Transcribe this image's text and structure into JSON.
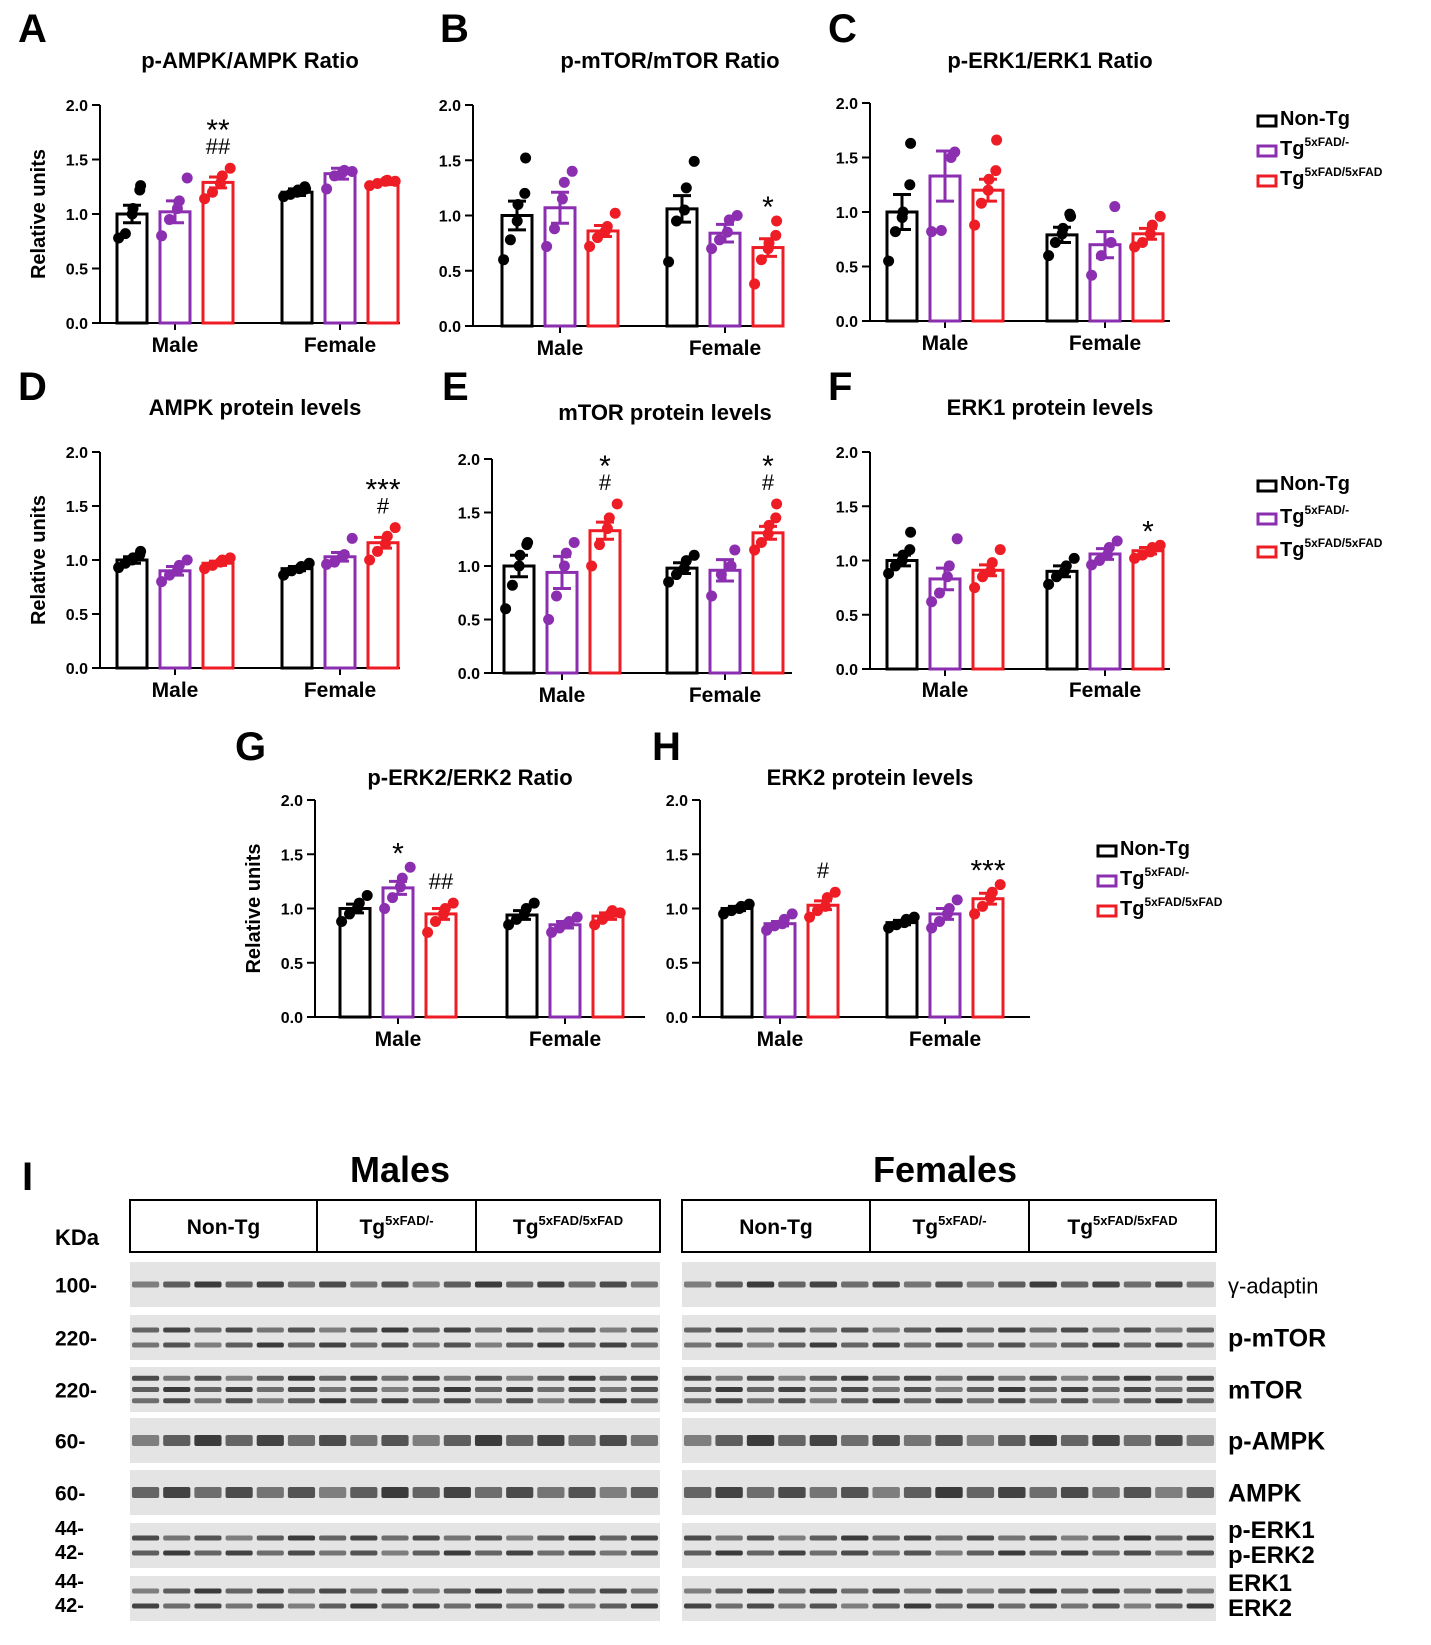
{
  "colors": {
    "non_tg": "#000000",
    "tg_het": "#8B2FB0",
    "tg_hom": "#EE1C25",
    "blot_bg": "#e4e4e4",
    "band": "#2a2a2a"
  },
  "legend": {
    "non_tg": "Non-Tg",
    "tg_het_base": "Tg",
    "tg_het_sup": "5xFAD/-",
    "tg_hom_base": "Tg",
    "tg_hom_sup": "5xFAD/5xFAD"
  },
  "chart_data": [
    {
      "panel": "A",
      "type": "bar",
      "title": "p-AMPK/AMPK Ratio",
      "ylabel": "Relative units",
      "ylim": [
        0,
        2.0
      ],
      "yticks": [
        "0.0",
        "0.5",
        "1.0",
        "1.5",
        "2.0"
      ],
      "categories": [
        "Male",
        "Female"
      ],
      "series": [
        {
          "name": "Non-Tg",
          "values": [
            1.0,
            1.2
          ],
          "sem": [
            0.08,
            0.03
          ],
          "points": [
            [
              0.78,
              0.82,
              1.0,
              1.05,
              1.22,
              1.26
            ],
            [
              1.16,
              1.18,
              1.2,
              1.22,
              1.25,
              1.23
            ]
          ]
        },
        {
          "name": "Tg5xFAD/-",
          "values": [
            1.02,
            1.37
          ],
          "sem": [
            0.1,
            0.05
          ],
          "points": [
            [
              0.8,
              0.95,
              1.05,
              1.12,
              1.33
            ],
            [
              1.23,
              1.35,
              1.38,
              1.4,
              1.39
            ]
          ]
        },
        {
          "name": "Tg5xFAD/5xFAD",
          "values": [
            1.29,
            1.29
          ],
          "sem": [
            0.05,
            0.02
          ],
          "points": [
            [
              1.14,
              1.2,
              1.28,
              1.35,
              1.42
            ],
            [
              1.26,
              1.28,
              1.3,
              1.31,
              1.3
            ]
          ]
        }
      ],
      "annotations": [
        {
          "category": 0,
          "series": 2,
          "lines": [
            "**",
            "##"
          ]
        }
      ]
    },
    {
      "panel": "B",
      "type": "bar",
      "title": "p-mTOR/mTOR Ratio",
      "ylabel": "",
      "ylim": [
        0,
        2.0
      ],
      "yticks": [
        "0.0",
        "0.5",
        "1.0",
        "1.5",
        "2.0"
      ],
      "categories": [
        "Male",
        "Female"
      ],
      "series": [
        {
          "name": "Non-Tg",
          "values": [
            1.0,
            1.06
          ],
          "sem": [
            0.13,
            0.12
          ],
          "points": [
            [
              0.6,
              0.78,
              0.95,
              1.1,
              1.2,
              1.52
            ],
            [
              0.58,
              0.95,
              1.05,
              1.25,
              1.49
            ]
          ]
        },
        {
          "name": "Tg5xFAD/-",
          "values": [
            1.07,
            0.84
          ],
          "sem": [
            0.14,
            0.08
          ],
          "points": [
            [
              0.72,
              0.88,
              1.15,
              1.3,
              1.4
            ],
            [
              0.7,
              0.78,
              0.85,
              0.96,
              1.0
            ]
          ]
        },
        {
          "name": "Tg5xFAD/5xFAD",
          "values": [
            0.86,
            0.71
          ],
          "sem": [
            0.05,
            0.08
          ],
          "points": [
            [
              0.72,
              0.8,
              0.86,
              0.9,
              1.02
            ],
            [
              0.38,
              0.6,
              0.7,
              0.75,
              0.82,
              0.95
            ]
          ]
        }
      ],
      "annotations": [
        {
          "category": 1,
          "series": 2,
          "lines": [
            "*"
          ]
        }
      ]
    },
    {
      "panel": "C",
      "type": "bar",
      "title": "p-ERK1/ERK1 Ratio",
      "ylabel": "",
      "ylim": [
        0,
        2.0
      ],
      "yticks": [
        "0.0",
        "0.5",
        "1.0",
        "1.5",
        "2.0"
      ],
      "categories": [
        "Male",
        "Female"
      ],
      "series": [
        {
          "name": "Non-Tg",
          "values": [
            1.0,
            0.79
          ],
          "sem": [
            0.16,
            0.07
          ],
          "points": [
            [
              0.55,
              0.82,
              0.95,
              1.0,
              1.25,
              1.63
            ],
            [
              0.6,
              0.72,
              0.8,
              0.85,
              0.98,
              0.96
            ]
          ]
        },
        {
          "name": "Tg5xFAD/-",
          "values": [
            1.33,
            0.7
          ],
          "sem": [
            0.23,
            0.12
          ],
          "points": [
            [
              0.82,
              0.83,
              1.5,
              1.55
            ],
            [
              0.42,
              0.6,
              0.72,
              1.05
            ]
          ]
        },
        {
          "name": "Tg5xFAD/5xFAD",
          "values": [
            1.2,
            0.8
          ],
          "sem": [
            0.1,
            0.05
          ],
          "points": [
            [
              0.88,
              1.08,
              1.2,
              1.3,
              1.38,
              1.66
            ],
            [
              0.68,
              0.72,
              0.8,
              0.88,
              0.96
            ]
          ]
        }
      ],
      "annotations": []
    },
    {
      "panel": "D",
      "type": "bar",
      "title": "AMPK protein levels",
      "ylabel": "Relative units",
      "ylim": [
        0,
        2.0
      ],
      "yticks": [
        "0.0",
        "0.5",
        "1.0",
        "1.5",
        "2.0"
      ],
      "categories": [
        "Male",
        "Female"
      ],
      "series": [
        {
          "name": "Non-Tg",
          "values": [
            1.0,
            0.92
          ],
          "sem": [
            0.03,
            0.02
          ],
          "points": [
            [
              0.93,
              0.97,
              1.0,
              1.02,
              1.05,
              1.08
            ],
            [
              0.86,
              0.9,
              0.92,
              0.94,
              0.97
            ]
          ]
        },
        {
          "name": "Tg5xFAD/-",
          "values": [
            0.9,
            1.03
          ],
          "sem": [
            0.04,
            0.04
          ],
          "points": [
            [
              0.8,
              0.86,
              0.9,
              0.95,
              1.0
            ],
            [
              0.96,
              0.98,
              1.03,
              1.05,
              1.2
            ]
          ]
        },
        {
          "name": "Tg5xFAD/5xFAD",
          "values": [
            0.97,
            1.16
          ],
          "sem": [
            0.02,
            0.05
          ],
          "points": [
            [
              0.92,
              0.95,
              0.98,
              1.0,
              1.02
            ],
            [
              1.0,
              1.08,
              1.15,
              1.22,
              1.3
            ]
          ]
        }
      ],
      "annotations": [
        {
          "category": 1,
          "series": 2,
          "lines": [
            "***",
            "#"
          ]
        }
      ]
    },
    {
      "panel": "E",
      "type": "bar",
      "title": "mTOR protein levels",
      "ylabel": "",
      "ylim": [
        0,
        2.0
      ],
      "yticks": [
        "0.0",
        "0.5",
        "1.0",
        "1.5",
        "2.0"
      ],
      "categories": [
        "Male",
        "Female"
      ],
      "series": [
        {
          "name": "Non-Tg",
          "values": [
            1.0,
            0.98
          ],
          "sem": [
            0.1,
            0.05
          ],
          "points": [
            [
              0.6,
              0.82,
              1.0,
              1.1,
              1.2,
              1.22
            ],
            [
              0.85,
              0.92,
              0.98,
              1.05,
              1.1
            ]
          ]
        },
        {
          "name": "Tg5xFAD/-",
          "values": [
            0.94,
            0.96
          ],
          "sem": [
            0.15,
            0.1
          ],
          "points": [
            [
              0.5,
              0.72,
              1.0,
              1.12,
              1.22
            ],
            [
              0.72,
              0.92,
              1.0,
              1.15
            ]
          ]
        },
        {
          "name": "Tg5xFAD/5xFAD",
          "values": [
            1.33,
            1.31
          ],
          "sem": [
            0.08,
            0.06
          ],
          "points": [
            [
              1.0,
              1.2,
              1.35,
              1.45,
              1.58
            ],
            [
              1.15,
              1.22,
              1.3,
              1.38,
              1.45,
              1.58
            ]
          ]
        }
      ],
      "annotations": [
        {
          "category": 0,
          "series": 2,
          "lines": [
            "*",
            "#"
          ]
        },
        {
          "category": 1,
          "series": 2,
          "lines": [
            "*",
            "#"
          ]
        }
      ]
    },
    {
      "panel": "F",
      "type": "bar",
      "title": "ERK1 protein levels",
      "ylabel": "",
      "ylim": [
        0,
        2.0
      ],
      "yticks": [
        "0.0",
        "0.5",
        "1.0",
        "1.5",
        "2.0"
      ],
      "categories": [
        "Male",
        "Female"
      ],
      "series": [
        {
          "name": "Non-Tg",
          "values": [
            1.0,
            0.9
          ],
          "sem": [
            0.05,
            0.05
          ],
          "points": [
            [
              0.88,
              0.95,
              1.0,
              1.05,
              1.1,
              1.26
            ],
            [
              0.78,
              0.85,
              0.9,
              0.95,
              1.02
            ]
          ]
        },
        {
          "name": "Tg5xFAD/-",
          "values": [
            0.83,
            1.06
          ],
          "sem": [
            0.1,
            0.05
          ],
          "points": [
            [
              0.62,
              0.7,
              0.85,
              0.95,
              1.2
            ],
            [
              0.96,
              1.0,
              1.05,
              1.12,
              1.18
            ]
          ]
        },
        {
          "name": "Tg5xFAD/5xFAD",
          "values": [
            0.91,
            1.09
          ],
          "sem": [
            0.05,
            0.03
          ],
          "points": [
            [
              0.75,
              0.85,
              0.9,
              0.98,
              1.1
            ],
            [
              1.02,
              1.05,
              1.08,
              1.12,
              1.14
            ]
          ]
        }
      ],
      "annotations": [
        {
          "category": 1,
          "series": 2,
          "lines": [
            "*"
          ]
        }
      ]
    },
    {
      "panel": "G",
      "type": "bar",
      "title": "p-ERK2/ERK2 Ratio",
      "ylabel": "Relative units",
      "ylim": [
        0,
        2.0
      ],
      "yticks": [
        "0.0",
        "0.5",
        "1.0",
        "1.5",
        "2.0"
      ],
      "categories": [
        "Male",
        "Female"
      ],
      "series": [
        {
          "name": "Non-Tg",
          "values": [
            1.0,
            0.94
          ],
          "sem": [
            0.04,
            0.04
          ],
          "points": [
            [
              0.88,
              0.95,
              1.0,
              1.05,
              1.12
            ],
            [
              0.85,
              0.9,
              0.95,
              1.0,
              1.05
            ]
          ]
        },
        {
          "name": "Tg5xFAD/-",
          "values": [
            1.19,
            0.85
          ],
          "sem": [
            0.06,
            0.03
          ],
          "points": [
            [
              1.0,
              1.1,
              1.2,
              1.28,
              1.38
            ],
            [
              0.78,
              0.82,
              0.86,
              0.88,
              0.92
            ]
          ]
        },
        {
          "name": "Tg5xFAD/5xFAD",
          "values": [
            0.95,
            0.93
          ],
          "sem": [
            0.05,
            0.03
          ],
          "points": [
            [
              0.78,
              0.88,
              0.95,
              1.0,
              1.05
            ],
            [
              0.85,
              0.9,
              0.95,
              0.98,
              0.96
            ]
          ]
        }
      ],
      "annotations": [
        {
          "category": 0,
          "series": 1,
          "lines": [
            "*"
          ]
        },
        {
          "category": 0,
          "series": 2,
          "lines": [
            "##"
          ]
        }
      ]
    },
    {
      "panel": "H",
      "type": "bar",
      "title": "ERK2 protein levels",
      "ylabel": "",
      "ylim": [
        0,
        2.0
      ],
      "yticks": [
        "0.0",
        "0.5",
        "1.0",
        "1.5",
        "2.0"
      ],
      "categories": [
        "Male",
        "Female"
      ],
      "series": [
        {
          "name": "Non-Tg",
          "values": [
            1.0,
            0.87
          ],
          "sem": [
            0.02,
            0.02
          ],
          "points": [
            [
              0.95,
              0.98,
              1.0,
              1.02,
              1.04
            ],
            [
              0.82,
              0.85,
              0.87,
              0.9,
              0.92
            ]
          ]
        },
        {
          "name": "Tg5xFAD/-",
          "values": [
            0.86,
            0.95
          ],
          "sem": [
            0.02,
            0.05
          ],
          "points": [
            [
              0.8,
              0.84,
              0.86,
              0.9,
              0.95
            ],
            [
              0.82,
              0.88,
              0.95,
              1.0,
              1.08
            ]
          ]
        },
        {
          "name": "Tg5xFAD/5xFAD",
          "values": [
            1.03,
            1.09
          ],
          "sem": [
            0.04,
            0.05
          ],
          "points": [
            [
              0.92,
              0.98,
              1.02,
              1.1,
              1.15
            ],
            [
              0.95,
              1.02,
              1.1,
              1.15,
              1.22
            ]
          ]
        }
      ],
      "annotations": [
        {
          "category": 0,
          "series": 2,
          "lines": [
            "#"
          ]
        },
        {
          "category": 1,
          "series": 2,
          "lines": [
            "***"
          ]
        }
      ]
    }
  ],
  "blot": {
    "panel": "I",
    "males_title": "Males",
    "females_title": "Females",
    "kda_label": "KDa",
    "groups": {
      "non_tg": "Non-Tg",
      "tg_het_base": "Tg",
      "tg_het_sup": "5xFAD/-",
      "tg_hom_base": "Tg",
      "tg_hom_sup": "5xFAD/5xFAD"
    },
    "rows": [
      {
        "kda": [
          "100-"
        ],
        "labels": [
          "γ-adaptin"
        ],
        "bands": 1
      },
      {
        "kda": [
          "220-"
        ],
        "labels": [
          "p-mTOR"
        ],
        "bands": 2
      },
      {
        "kda": [
          "220-"
        ],
        "labels": [
          "mTOR"
        ],
        "bands": 3
      },
      {
        "kda": [
          "60-"
        ],
        "labels": [
          "p-AMPK"
        ],
        "bands": 1
      },
      {
        "kda": [
          "60-"
        ],
        "labels": [
          "AMPK"
        ],
        "bands": 1
      },
      {
        "kda": [
          "44-",
          "42-"
        ],
        "labels": [
          "p-ERK1",
          "p-ERK2"
        ],
        "bands": 2
      },
      {
        "kda": [
          "44-",
          "42-"
        ],
        "labels": [
          "ERK1",
          "ERK2"
        ],
        "bands": 2
      }
    ]
  }
}
